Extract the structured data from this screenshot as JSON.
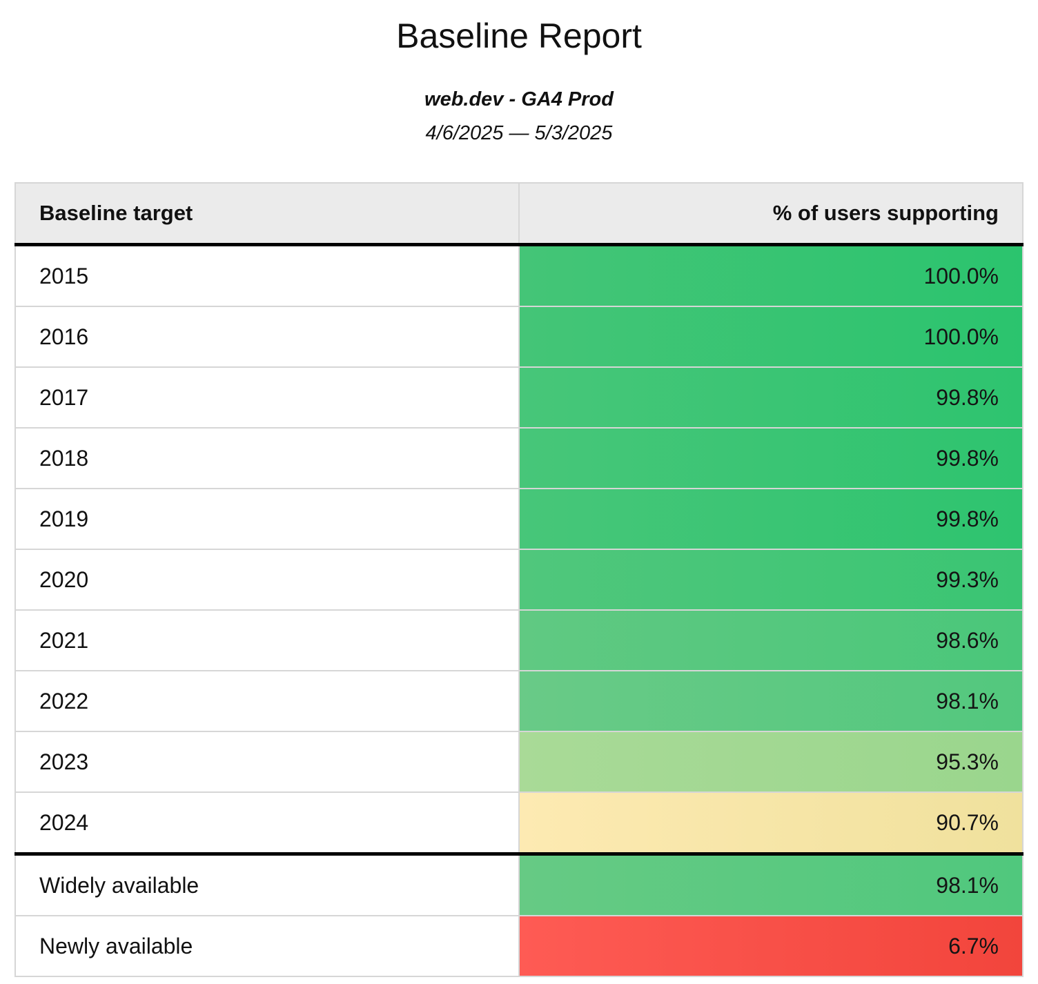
{
  "page": {
    "title": "Baseline Report",
    "subtitle": "web.dev - GA4 Prod",
    "date_range": "4/6/2025 — 5/3/2025"
  },
  "table": {
    "columns": {
      "target": "Baseline target",
      "support": "% of users supporting"
    },
    "rows": [
      {
        "label": "2015",
        "value": "100.0%",
        "bg_left": "#44c577",
        "bg_right": "#2bc46e"
      },
      {
        "label": "2016",
        "value": "100.0%",
        "bg_left": "#44c577",
        "bg_right": "#2bc46e"
      },
      {
        "label": "2017",
        "value": "99.8%",
        "bg_left": "#47c679",
        "bg_right": "#2ec46f"
      },
      {
        "label": "2018",
        "value": "99.8%",
        "bg_left": "#47c679",
        "bg_right": "#2ec46f"
      },
      {
        "label": "2019",
        "value": "99.8%",
        "bg_left": "#47c679",
        "bg_right": "#2ec46f"
      },
      {
        "label": "2020",
        "value": "99.3%",
        "bg_left": "#50c77c",
        "bg_right": "#3ac573"
      },
      {
        "label": "2021",
        "value": "98.6%",
        "bg_left": "#60c982",
        "bg_right": "#4ac77a"
      },
      {
        "label": "2022",
        "value": "98.1%",
        "bg_left": "#69ca87",
        "bg_right": "#53c87e"
      },
      {
        "label": "2023",
        "value": "95.3%",
        "bg_left": "#a9da97",
        "bg_right": "#9ad68d"
      },
      {
        "label": "2024",
        "value": "90.7%",
        "bg_left": "#fdeab2",
        "bg_right": "#f0e19d"
      },
      {
        "label": "Widely available",
        "value": "98.1%",
        "bg_left": "#66ca84",
        "bg_right": "#50c87d"
      },
      {
        "label": "Newly available",
        "value": "6.7%",
        "bg_left": "#fe5b54",
        "bg_right": "#f2453c"
      }
    ]
  },
  "colors": {
    "header_background": "#ebebeb",
    "grid_border": "#d6d6d6",
    "section_border": "#000000",
    "good": "#2bc46e",
    "warning": "#f0e19d",
    "bad": "#f2453c"
  },
  "chart_data": {
    "type": "table",
    "title": "Baseline Report",
    "subtitle": "web.dev - GA4 Prod",
    "date_range": "4/6/2025 — 5/3/2025",
    "columns": [
      "Baseline target",
      "% of users supporting"
    ],
    "categories": [
      "2015",
      "2016",
      "2017",
      "2018",
      "2019",
      "2020",
      "2021",
      "2022",
      "2023",
      "2024",
      "Widely available",
      "Newly available"
    ],
    "values": [
      100.0,
      100.0,
      99.8,
      99.8,
      99.8,
      99.3,
      98.6,
      98.1,
      95.3,
      90.7,
      98.1,
      6.7
    ],
    "value_format": "percent",
    "color_encoding": "heatmap green (high) → yellow (~90) → red (low)",
    "layout": "two-column report table, value column cells filled with heatmap color, thick black rule under header and between 2024 and Widely available"
  }
}
